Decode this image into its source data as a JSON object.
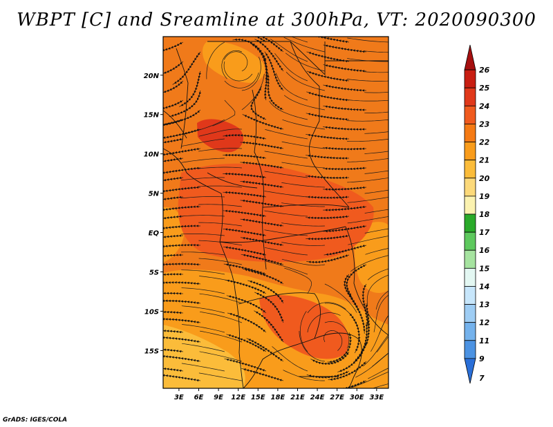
{
  "title": "WBPT [C] and Sreamline at 300hPa, VT: 2020090300",
  "credit": "GrADS: IGES/COLA",
  "map": {
    "lat_ticks": [
      "20N",
      "15N",
      "10N",
      "5N",
      "EQ",
      "5S",
      "10S",
      "15S"
    ],
    "lat_values": [
      20,
      15,
      10,
      5,
      0,
      -5,
      -10,
      -15
    ],
    "lon_ticks": [
      "3E",
      "6E",
      "9E",
      "12E",
      "15E",
      "18E",
      "21E",
      "24E",
      "27E",
      "30E",
      "33E"
    ],
    "lon_values": [
      3,
      6,
      9,
      12,
      15,
      18,
      21,
      24,
      27,
      30,
      33
    ],
    "lat_range": [
      -19.8,
      24.9
    ],
    "lon_range": [
      0.6,
      34.8
    ]
  },
  "colorbar": {
    "labels": [
      "26",
      "25",
      "24",
      "23",
      "22",
      "21",
      "20",
      "19",
      "18",
      "17",
      "16",
      "15",
      "14",
      "13",
      "12",
      "11",
      "9",
      "7"
    ],
    "colors": [
      "#a50f0f",
      "#c81e12",
      "#e0381a",
      "#f05a1e",
      "#f57a14",
      "#f99c1b",
      "#fbbc3a",
      "#fcd97a",
      "#fbf2b0",
      "#2aaa2a",
      "#5ec95e",
      "#a6e3a0",
      "#e3f7f2",
      "#c7e6fb",
      "#9ecdf4",
      "#74b2ec",
      "#4b92e2",
      "#2a6fd8"
    ]
  },
  "wbpt_field": {
    "background": "#f07a1a",
    "palette": {
      "c20": "#fbbc3a",
      "c21": "#f99c1b",
      "c23": "#f05a1e",
      "c24": "#e0381a"
    }
  }
}
